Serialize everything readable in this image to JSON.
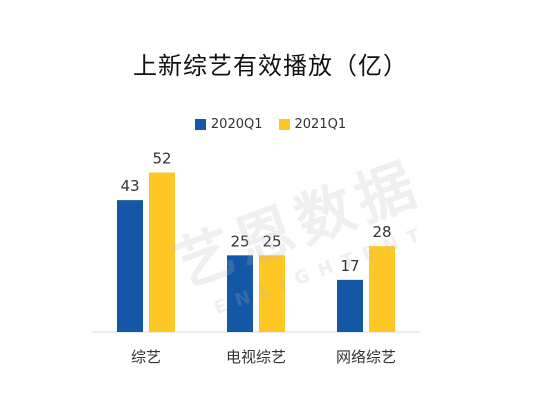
{
  "chart_data": {
    "type": "bar",
    "title": "上新综艺有效播放（亿）",
    "categories": [
      "综艺",
      "电视综艺",
      "网络综艺"
    ],
    "series": [
      {
        "name": "2020Q1",
        "values": [
          43,
          25,
          17
        ],
        "color": "#1357A6"
      },
      {
        "name": "2021Q1",
        "values": [
          52,
          25,
          28
        ],
        "color": "#FFC726"
      }
    ],
    "ylim": [
      0,
      60
    ],
    "grid": false,
    "legend": "top-center",
    "data_labels": true
  },
  "watermark": {
    "main": "艺恩数据",
    "sub": "ENLIGHTENT"
  }
}
